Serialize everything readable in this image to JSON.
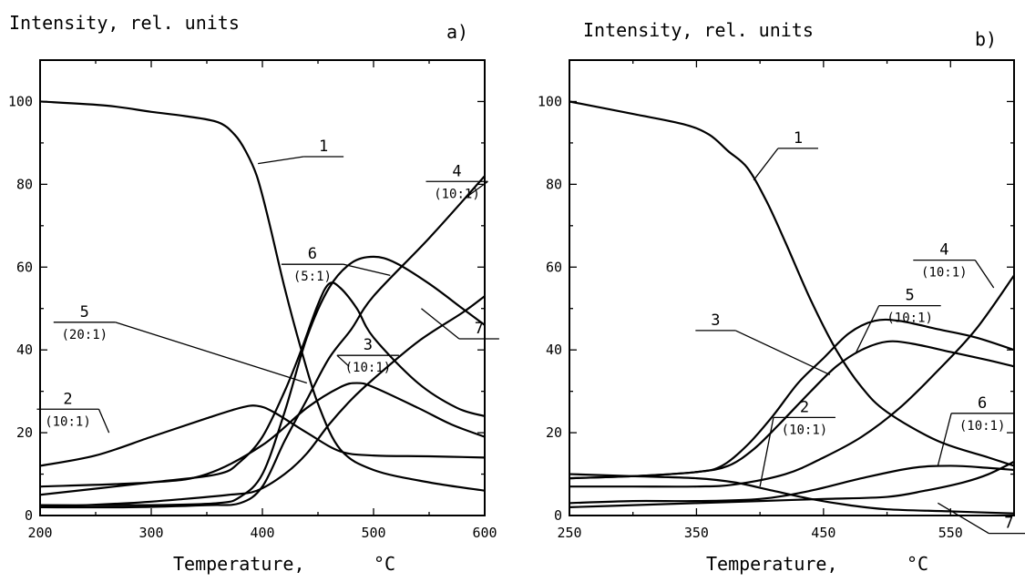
{
  "chart_data": [
    {
      "type": "line",
      "panel": "a)",
      "ylabel": "Intensity, rel. units",
      "xlabel": "Temperature,",
      "xunit": "°C",
      "xlim": [
        200,
        600
      ],
      "ylim": [
        0,
        110
      ],
      "xticks": [
        "200",
        "300",
        "400",
        "500",
        "600"
      ],
      "yticks": [
        "0",
        "20",
        "40",
        "60",
        "80",
        "100"
      ],
      "series": [
        {
          "id": "1",
          "ratio": "",
          "label_x": 455,
          "label_y": 88,
          "leader_to": [
            396,
            85
          ],
          "points": [
            [
              200,
              100
            ],
            [
              260,
              99
            ],
            [
              300,
              97.5
            ],
            [
              330,
              96.5
            ],
            [
              360,
              95
            ],
            [
              375,
              92
            ],
            [
              385,
              88
            ],
            [
              395,
              82
            ],
            [
              405,
              72
            ],
            [
              420,
              55
            ],
            [
              435,
              40
            ],
            [
              450,
              27
            ],
            [
              470,
              16
            ],
            [
              500,
              11
            ],
            [
              550,
              8
            ],
            [
              600,
              6
            ]
          ]
        },
        {
          "id": "2",
          "ratio": "(10:1)",
          "label_x": 225,
          "label_y": 27,
          "leader_to": [
            262,
            20
          ],
          "points": [
            [
              200,
              12
            ],
            [
              250,
              14.5
            ],
            [
              300,
              19
            ],
            [
              350,
              23.5
            ],
            [
              380,
              26
            ],
            [
              395,
              26.5
            ],
            [
              410,
              25
            ],
            [
              440,
              20
            ],
            [
              470,
              15.5
            ],
            [
              500,
              14.5
            ],
            [
              550,
              14.3
            ],
            [
              600,
              14
            ]
          ]
        },
        {
          "id": "3",
          "ratio": "(10:1)",
          "label_x": 495,
          "label_y": 40,
          "leader_to": [
            478,
            36
          ],
          "points": [
            [
              200,
              7
            ],
            [
              300,
              8
            ],
            [
              350,
              10
            ],
            [
              400,
              17
            ],
            [
              440,
              26
            ],
            [
              470,
              31
            ],
            [
              485,
              32
            ],
            [
              500,
              31
            ],
            [
              540,
              26
            ],
            [
              570,
              22
            ],
            [
              600,
              19
            ]
          ]
        },
        {
          "id": "4",
          "ratio": "(10:1)",
          "label_x": 575,
          "label_y": 82,
          "leader_to": [
            584,
            77
          ],
          "points": [
            [
              200,
              2
            ],
            [
              280,
              2
            ],
            [
              350,
              2.5
            ],
            [
              380,
              3
            ],
            [
              400,
              7
            ],
            [
              420,
              18
            ],
            [
              440,
              28
            ],
            [
              460,
              38
            ],
            [
              480,
              45
            ],
            [
              500,
              53
            ],
            [
              550,
              67
            ],
            [
              600,
              82
            ]
          ]
        },
        {
          "id": "5",
          "ratio": "(20:1)",
          "label_x": 240,
          "label_y": 48,
          "leader_to": [
            440,
            32
          ],
          "points": [
            [
              200,
              5
            ],
            [
              300,
              8
            ],
            [
              360,
              10
            ],
            [
              380,
              13
            ],
            [
              400,
              19
            ],
            [
              420,
              30
            ],
            [
              435,
              40
            ],
            [
              450,
              51
            ],
            [
              460,
              56
            ],
            [
              470,
              55
            ],
            [
              485,
              50
            ],
            [
              500,
              43
            ],
            [
              540,
              32
            ],
            [
              575,
              26
            ],
            [
              600,
              24
            ]
          ]
        },
        {
          "id": "6",
          "ratio": "(5:1)",
          "label_x": 445,
          "label_y": 62,
          "leader_to": [
            515,
            58
          ],
          "points": [
            [
              200,
              2.5
            ],
            [
              300,
              2.5
            ],
            [
              360,
              3
            ],
            [
              380,
              4.5
            ],
            [
              400,
              10
            ],
            [
              420,
              25
            ],
            [
              440,
              43
            ],
            [
              460,
              55
            ],
            [
              480,
              61
            ],
            [
              500,
              62.5
            ],
            [
              520,
              61
            ],
            [
              550,
              56
            ],
            [
              580,
              50
            ],
            [
              600,
              46
            ]
          ]
        },
        {
          "id": "7",
          "ratio": "",
          "label_x": 595,
          "label_y": 44,
          "leader_to": [
            543,
            50
          ],
          "points": [
            [
              200,
              2
            ],
            [
              280,
              3
            ],
            [
              330,
              4
            ],
            [
              370,
              5
            ],
            [
              395,
              6
            ],
            [
              420,
              10
            ],
            [
              440,
              15
            ],
            [
              460,
              22
            ],
            [
              480,
              28
            ],
            [
              500,
              33
            ],
            [
              540,
              42
            ],
            [
              580,
              49
            ],
            [
              600,
              53
            ]
          ]
        }
      ]
    },
    {
      "type": "line",
      "panel": "b)",
      "ylabel": "Intensity, rel. units",
      "xlabel": "Temperature,",
      "xunit": "°C",
      "xlim": [
        250,
        600
      ],
      "ylim": [
        0,
        110
      ],
      "xticks": [
        "250",
        "350",
        "450",
        "550"
      ],
      "xtick_values": [
        250,
        350,
        450,
        550
      ],
      "yticks": [
        "0",
        "20",
        "40",
        "60",
        "80",
        "100"
      ],
      "series": [
        {
          "id": "1",
          "ratio": "",
          "label_x": 430,
          "label_y": 90,
          "leader_to": [
            395,
            81
          ],
          "points": [
            [
              250,
              100
            ],
            [
              300,
              97
            ],
            [
              340,
              94.5
            ],
            [
              360,
              92
            ],
            [
              375,
              88
            ],
            [
              390,
              84
            ],
            [
              405,
              76
            ],
            [
              420,
              66
            ],
            [
              440,
              52
            ],
            [
              460,
              40
            ],
            [
              480,
              31
            ],
            [
              500,
              25
            ],
            [
              540,
              18
            ],
            [
              580,
              14
            ],
            [
              600,
              12
            ]
          ]
        },
        {
          "id": "2",
          "ratio": "(10:1)",
          "label_x": 435,
          "label_y": 25,
          "leader_to": [
            400,
            7
          ],
          "points": [
            [
              250,
              3
            ],
            [
              300,
              3.5
            ],
            [
              350,
              3.5
            ],
            [
              400,
              4
            ],
            [
              440,
              6
            ],
            [
              480,
              9
            ],
            [
              520,
              11.5
            ],
            [
              550,
              12
            ],
            [
              580,
              11.5
            ],
            [
              600,
              11
            ]
          ]
        },
        {
          "id": "3",
          "ratio": "",
          "label_x": 365,
          "label_y": 46,
          "leader_to": [
            455,
            34
          ],
          "points": [
            [
              250,
              9
            ],
            [
              300,
              9.5
            ],
            [
              350,
              10.5
            ],
            [
              370,
              12
            ],
            [
              390,
              17
            ],
            [
              410,
              24
            ],
            [
              430,
              32
            ],
            [
              450,
              38
            ],
            [
              470,
              44
            ],
            [
              490,
              47
            ],
            [
              510,
              47
            ],
            [
              540,
              45
            ],
            [
              570,
              43
            ],
            [
              600,
              40
            ]
          ]
        },
        {
          "id": "4",
          "ratio": "(10:1)",
          "label_x": 545,
          "label_y": 63,
          "leader_to": [
            584,
            55
          ],
          "points": [
            [
              250,
              7
            ],
            [
              300,
              7
            ],
            [
              350,
              7
            ],
            [
              380,
              7.5
            ],
            [
              420,
              10
            ],
            [
              450,
              14
            ],
            [
              480,
              19
            ],
            [
              510,
              26
            ],
            [
              540,
              35
            ],
            [
              570,
              45
            ],
            [
              600,
              58
            ]
          ]
        },
        {
          "id": "5",
          "ratio": "(10:1)",
          "label_x": 518,
          "label_y": 52,
          "leader_to": [
            475,
            39
          ],
          "points": [
            [
              250,
              9
            ],
            [
              300,
              9.5
            ],
            [
              350,
              10.5
            ],
            [
              375,
              12
            ],
            [
              395,
              16
            ],
            [
              415,
              22
            ],
            [
              440,
              30
            ],
            [
              460,
              36
            ],
            [
              480,
              40
            ],
            [
              500,
              42
            ],
            [
              520,
              41.5
            ],
            [
              550,
              39.5
            ],
            [
              580,
              37.5
            ],
            [
              600,
              36
            ]
          ]
        },
        {
          "id": "6",
          "ratio": "(10:1)",
          "label_x": 575,
          "label_y": 26,
          "leader_to": [
            540,
            12
          ],
          "points": [
            [
              250,
              2
            ],
            [
              300,
              2.5
            ],
            [
              350,
              3
            ],
            [
              400,
              3.5
            ],
            [
              450,
              4
            ],
            [
              500,
              4.5
            ],
            [
              530,
              6
            ],
            [
              560,
              8
            ],
            [
              580,
              10
            ],
            [
              600,
              13
            ]
          ]
        },
        {
          "id": "7",
          "ratio": "",
          "label_x": 596,
          "label_y": -3,
          "leader_to": [
            540,
            3
          ],
          "points": [
            [
              250,
              10
            ],
            [
              300,
              9.5
            ],
            [
              350,
              9
            ],
            [
              380,
              8
            ],
            [
              410,
              6
            ],
            [
              440,
              4
            ],
            [
              470,
              2.5
            ],
            [
              500,
              1.5
            ],
            [
              550,
              1
            ],
            [
              600,
              0.5
            ]
          ]
        }
      ]
    }
  ]
}
